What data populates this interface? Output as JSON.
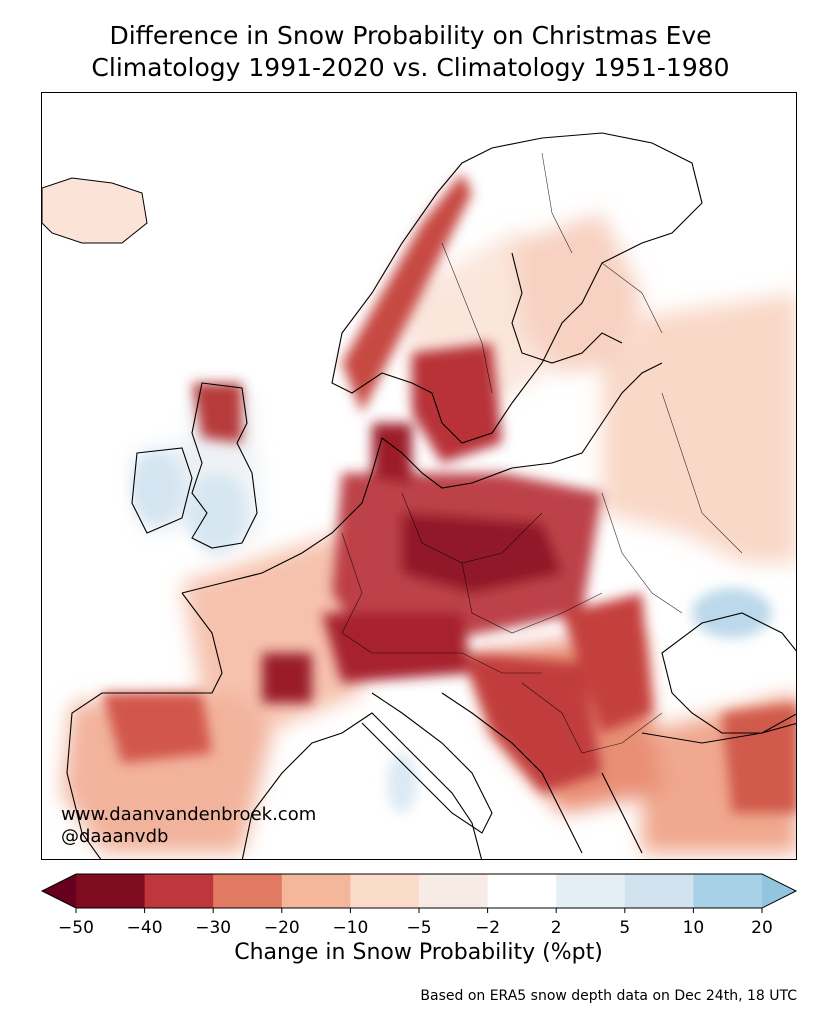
{
  "title_line1": "Difference in Snow Probability on Christmas Eve",
  "title_line2": "Climatology 1991-2020 vs. Climatology 1951-1980",
  "watermark": {
    "website": "www.daanvandenbroek.com",
    "handle": "@daaanvdb"
  },
  "source_note": "Based on ERA5 snow depth data on Dec 24th, 18 UTC",
  "chart_data": {
    "type": "heatmap",
    "title": "Difference in Snow Probability on Christmas Eve — Climatology 1991-2020 vs. Climatology 1951-1980",
    "region": "Europe",
    "colorbar": {
      "label": "Change in Snow Probability (%pt)",
      "ticks": [
        "−50",
        "−40",
        "−30",
        "−20",
        "−10",
        "−5",
        "−2",
        "2",
        "5",
        "10",
        "20"
      ],
      "boundaries": [
        -50,
        -40,
        -30,
        -20,
        -10,
        -5,
        -2,
        2,
        5,
        10,
        20
      ],
      "colors": [
        "#7f0b1f",
        "#c0363d",
        "#e07a63",
        "#f5b79c",
        "#fbdccb",
        "#f7ebe6",
        "#ffffff",
        "#e4eef5",
        "#d0e3ef",
        "#a8d0e6"
      ],
      "extend": "both",
      "under_color": "#67001f",
      "over_color": "#92c5de"
    }
  }
}
